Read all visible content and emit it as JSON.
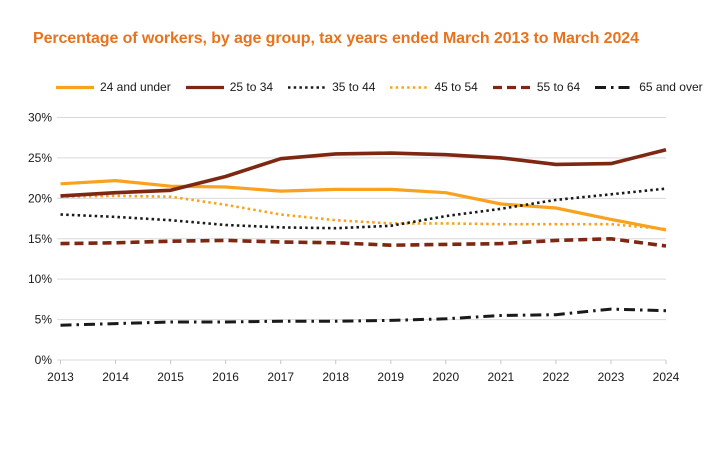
{
  "title": "Percentage of workers, by age group, tax years ended March 2013 to March 2024",
  "colors": {
    "title": "#E8731F",
    "orange": "#F9A21E",
    "maroon": "#7E2813",
    "black": "#1A1A1A",
    "gridline": "#D9D9D9",
    "axis": "#C6C6C6",
    "background": "#FFFFFF"
  },
  "chart_data": {
    "type": "line",
    "title": "Percentage of workers, by age group, tax years ended March 2013 to March 2024",
    "xlabel": "",
    "ylabel": "",
    "ylim": [
      0,
      30
    ],
    "grid": "horizontal",
    "legend_position": "top",
    "x": [
      "2013",
      "2014",
      "2015",
      "2016",
      "2017",
      "2018",
      "2019",
      "2020",
      "2021",
      "2022",
      "2023",
      "2024"
    ],
    "yticks": [
      {
        "label": "0%",
        "value": 0
      },
      {
        "label": "5%",
        "value": 5
      },
      {
        "label": "10%",
        "value": 10
      },
      {
        "label": "15%",
        "value": 15
      },
      {
        "label": "20%",
        "value": 20
      },
      {
        "label": "25%",
        "value": 25
      },
      {
        "label": "30%",
        "value": 30
      }
    ],
    "series": [
      {
        "id": "24-and-under",
        "name": "24 and under",
        "color": "#F9A21E",
        "dash": "",
        "width": 3.2,
        "values": [
          21.8,
          22.2,
          21.5,
          21.4,
          20.9,
          21.1,
          21.1,
          20.7,
          19.3,
          18.8,
          17.4,
          16.1
        ]
      },
      {
        "id": "45-to-54",
        "name": "45 to 54",
        "color": "#F9A21E",
        "dash": "2.5 3.2",
        "width": 2.6,
        "values": [
          20.2,
          20.3,
          20.2,
          19.2,
          18.0,
          17.3,
          16.9,
          16.9,
          16.8,
          16.8,
          16.8,
          16.2
        ]
      },
      {
        "id": "35-to-44",
        "name": "35 to 44",
        "color": "#1A1A1A",
        "dash": "2.5 3.2",
        "width": 2.6,
        "values": [
          18.0,
          17.7,
          17.3,
          16.7,
          16.4,
          16.3,
          16.6,
          17.8,
          18.7,
          19.8,
          20.5,
          21.2
        ]
      },
      {
        "id": "55-to-64",
        "name": "55 to 64",
        "color": "#7E2813",
        "dash": "9 5",
        "width": 3.6,
        "values": [
          14.4,
          14.5,
          14.7,
          14.8,
          14.6,
          14.5,
          14.2,
          14.3,
          14.4,
          14.8,
          15.0,
          14.1
        ]
      },
      {
        "id": "65-and-over",
        "name": "65 and over",
        "color": "#1A1A1A",
        "dash": "11 5 2.5 5",
        "width": 3,
        "values": [
          4.3,
          4.5,
          4.7,
          4.7,
          4.8,
          4.8,
          4.9,
          5.1,
          5.5,
          5.6,
          6.3,
          6.1
        ]
      },
      {
        "id": "25-to-34",
        "name": "25 to 34",
        "color": "#7E2813",
        "dash": "",
        "width": 3.6,
        "values": [
          20.3,
          20.7,
          21.0,
          22.7,
          24.9,
          25.5,
          25.6,
          25.4,
          25.0,
          24.2,
          24.3,
          26.0
        ]
      }
    ],
    "legend_order": [
      0,
      5,
      2,
      1,
      3,
      4
    ]
  }
}
